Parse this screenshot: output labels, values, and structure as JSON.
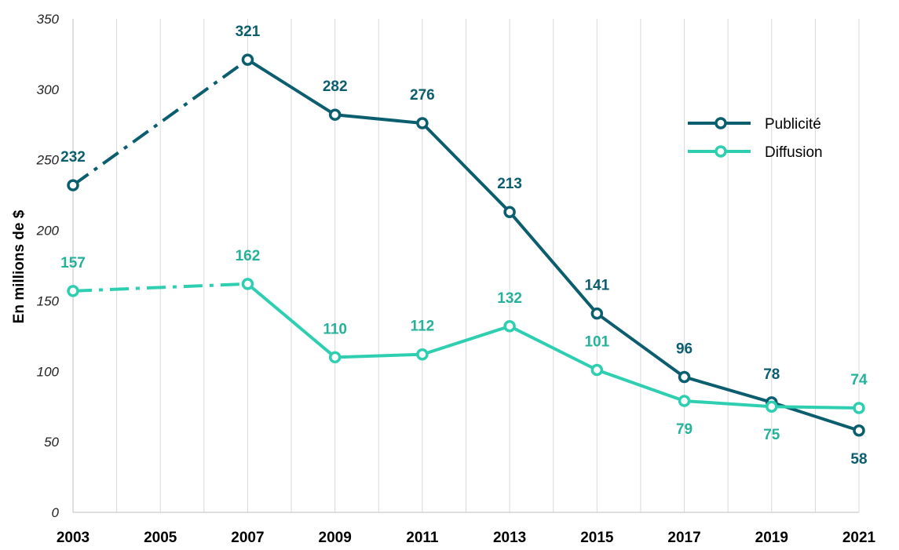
{
  "chart_data": {
    "type": "line",
    "ylabel": "En millions de $",
    "xlabel": "",
    "ylim": [
      0,
      350
    ],
    "yticks": [
      0,
      50,
      100,
      150,
      200,
      250,
      300,
      350
    ],
    "xlim": [
      2003,
      2021
    ],
    "xticks": [
      2003,
      2005,
      2007,
      2009,
      2011,
      2013,
      2015,
      2017,
      2019,
      2021
    ],
    "grid": "vertical",
    "legend_position": "top-right",
    "series": [
      {
        "name": "Publicité",
        "color": "#0b5e6e",
        "x": [
          2003,
          2007,
          2009,
          2011,
          2013,
          2015,
          2017,
          2019,
          2021
        ],
        "values": [
          232,
          321,
          282,
          276,
          213,
          141,
          96,
          78,
          58
        ],
        "dashed_segments": [
          [
            2003,
            2007
          ]
        ],
        "labels": [
          "232",
          "321",
          "282",
          "276",
          "213",
          "141",
          "96",
          "78",
          "58"
        ],
        "label_positions": [
          "above",
          "above",
          "above",
          "above",
          "above",
          "above",
          "above",
          "above",
          "below"
        ]
      },
      {
        "name": "Diffusion",
        "color": "#2ecfb0",
        "label_color": "#26b29a",
        "x": [
          2003,
          2007,
          2009,
          2011,
          2013,
          2015,
          2017,
          2019,
          2021
        ],
        "values": [
          157,
          162,
          110,
          112,
          132,
          101,
          79,
          75,
          74
        ],
        "dashed_segments": [
          [
            2003,
            2007
          ]
        ],
        "labels": [
          "157",
          "162",
          "110",
          "112",
          "132",
          "101",
          "79",
          "75",
          "74"
        ],
        "label_positions": [
          "above",
          "above",
          "above",
          "above",
          "above",
          "above",
          "below",
          "below",
          "above"
        ]
      }
    ]
  }
}
